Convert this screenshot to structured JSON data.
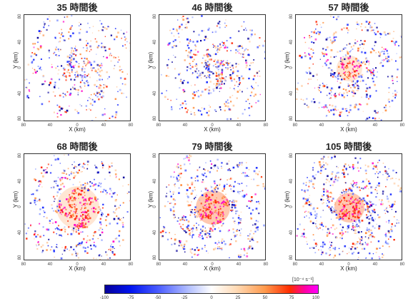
{
  "panels": [
    {
      "title": "35 時間後",
      "xlabel": "X (km)",
      "ylabel": "Y (km)",
      "xticks": [
        "80",
        "40",
        "0",
        "40",
        "80"
      ],
      "yticks": [
        "80",
        "40",
        "0",
        "40",
        "80"
      ]
    },
    {
      "title": "46 時間後",
      "xlabel": "X (km)",
      "ylabel": "Y (km)",
      "xticks": [
        "80",
        "40",
        "0",
        "40",
        "80"
      ],
      "yticks": [
        "80",
        "40",
        "0",
        "40",
        "80"
      ]
    },
    {
      "title": "57 時間後",
      "xlabel": "X (km)",
      "ylabel": "Y (km)",
      "xticks": [
        "80",
        "40",
        "0",
        "40",
        "80"
      ],
      "yticks": [
        "80",
        "40",
        "0",
        "40",
        "80"
      ]
    },
    {
      "title": "68 時間後",
      "xlabel": "X (km)",
      "ylabel": "Y (km)",
      "xticks": [
        "80",
        "40",
        "0",
        "40",
        "80"
      ],
      "yticks": [
        "80",
        "40",
        "0",
        "40",
        "80"
      ]
    },
    {
      "title": "79 時間後",
      "xlabel": "X (km)",
      "ylabel": "Y (km)",
      "xticks": [
        "80",
        "40",
        "0",
        "40",
        "80"
      ],
      "yticks": [
        "80",
        "40",
        "0",
        "40",
        "80"
      ]
    },
    {
      "title": "105 時間後",
      "xlabel": "X (km)",
      "ylabel": "Y (km)",
      "xticks": [
        "80",
        "40",
        "0",
        "40",
        "80"
      ],
      "yticks": [
        "80",
        "40",
        "0",
        "40",
        "80"
      ]
    }
  ],
  "colorbar": {
    "unit": "[10⁻⁴ s⁻¹]",
    "ticks": [
      "-100",
      "-75",
      "-50",
      "-25",
      "0",
      "25",
      "50",
      "75",
      "100"
    ],
    "colors": {
      "neg_strong": "#06009a",
      "neg_mid": "#4a5cff",
      "zero": "#ffffff",
      "pos_mid": "#ff9a4d",
      "pos_strong": "#ff2a00",
      "pos_max": "#ff00ff"
    }
  }
}
